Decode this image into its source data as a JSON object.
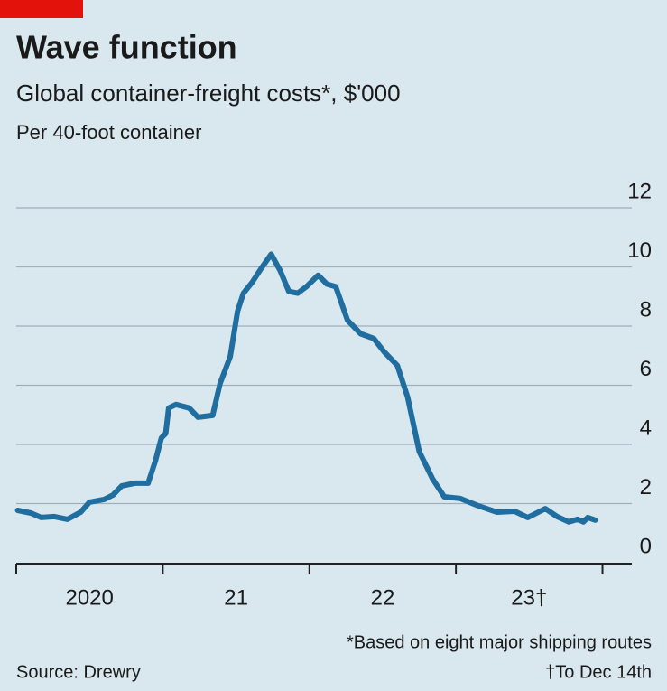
{
  "chart_data": {
    "type": "line",
    "title": "Wave function",
    "subtitle": "Global container-freight costs*, $'000",
    "unit_note": "Per 40-foot container",
    "footnote": "*Based on eight major shipping routes",
    "footnote2": "†To Dec 14th",
    "source": "Source: Drewry",
    "xlim": [
      2020,
      2024.2
    ],
    "xticks": [
      2020,
      2021,
      2022,
      2023,
      2024
    ],
    "xtick_labels": [
      {
        "value": 2020.5,
        "label": "2020"
      },
      {
        "value": 2021.5,
        "label": "21"
      },
      {
        "value": 2022.5,
        "label": "22"
      },
      {
        "value": 2023.5,
        "label": "23†"
      }
    ],
    "ylim": [
      0,
      12
    ],
    "yticks": [
      0,
      2,
      4,
      6,
      8,
      10,
      12
    ],
    "grid": true,
    "x": [
      2020.01,
      2020.1,
      2020.17,
      2020.26,
      2020.35,
      2020.44,
      2020.5,
      2020.6,
      2020.66,
      2020.72,
      2020.81,
      2020.9,
      2020.95,
      2020.99,
      2021.02,
      2021.04,
      2021.09,
      2021.18,
      2021.24,
      2021.34,
      2021.39,
      2021.46,
      2021.51,
      2021.55,
      2021.61,
      2021.67,
      2021.74,
      2021.8,
      2021.86,
      2021.92,
      2021.98,
      2022.06,
      2022.12,
      2022.18,
      2022.26,
      2022.35,
      2022.44,
      2022.51,
      2022.6,
      2022.67,
      2022.75,
      2022.84,
      2022.92,
      2023.03,
      2023.15,
      2023.28,
      2023.4,
      2023.49,
      2023.55,
      2023.61,
      2023.69,
      2023.77,
      2023.83,
      2023.87,
      2023.9,
      2023.95
    ],
    "series": [
      {
        "name": "Container-freight cost",
        "color": "#1f6e9f",
        "values": [
          1.77,
          1.68,
          1.53,
          1.56,
          1.47,
          1.71,
          2.05,
          2.14,
          2.29,
          2.6,
          2.69,
          2.69,
          3.46,
          4.22,
          4.37,
          5.23,
          5.35,
          5.23,
          4.92,
          4.98,
          6.05,
          6.97,
          8.5,
          9.11,
          9.48,
          9.94,
          10.43,
          9.88,
          9.17,
          9.11,
          9.33,
          9.72,
          9.42,
          9.33,
          8.2,
          7.74,
          7.58,
          7.13,
          6.67,
          5.6,
          3.76,
          2.84,
          2.23,
          2.17,
          1.93,
          1.71,
          1.74,
          1.53,
          1.68,
          1.83,
          1.56,
          1.38,
          1.47,
          1.38,
          1.53,
          1.44
        ]
      }
    ]
  }
}
